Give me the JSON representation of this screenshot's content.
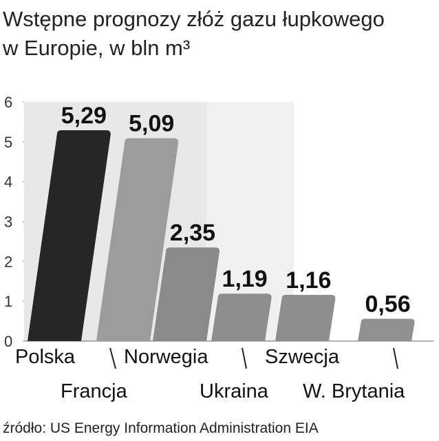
{
  "chart_data": {
    "type": "bar",
    "title": [
      "Wstępne prognozy złóż gazu łupkowego",
      "w Europie, w bln m³"
    ],
    "categories": [
      "Polska",
      "Francja",
      "Norwegia",
      "Ukraina",
      "Szwecja",
      "W. Brytania"
    ],
    "values": [
      5.29,
      5.09,
      2.35,
      1.19,
      1.16,
      0.56
    ],
    "value_labels": [
      "5,29",
      "5,09",
      "2,35",
      "1,19",
      "1,16",
      "0,56"
    ],
    "colors": [
      "#262626",
      "#9c9c9c",
      "#8a8a8a",
      "#8e8e8e",
      "#8e8e8e",
      "#909090"
    ],
    "ylim": [
      0,
      6
    ],
    "yticks": [
      0,
      1,
      2,
      3,
      4,
      5,
      6
    ],
    "source": "źródło: US Energy Information Administration EIA"
  }
}
